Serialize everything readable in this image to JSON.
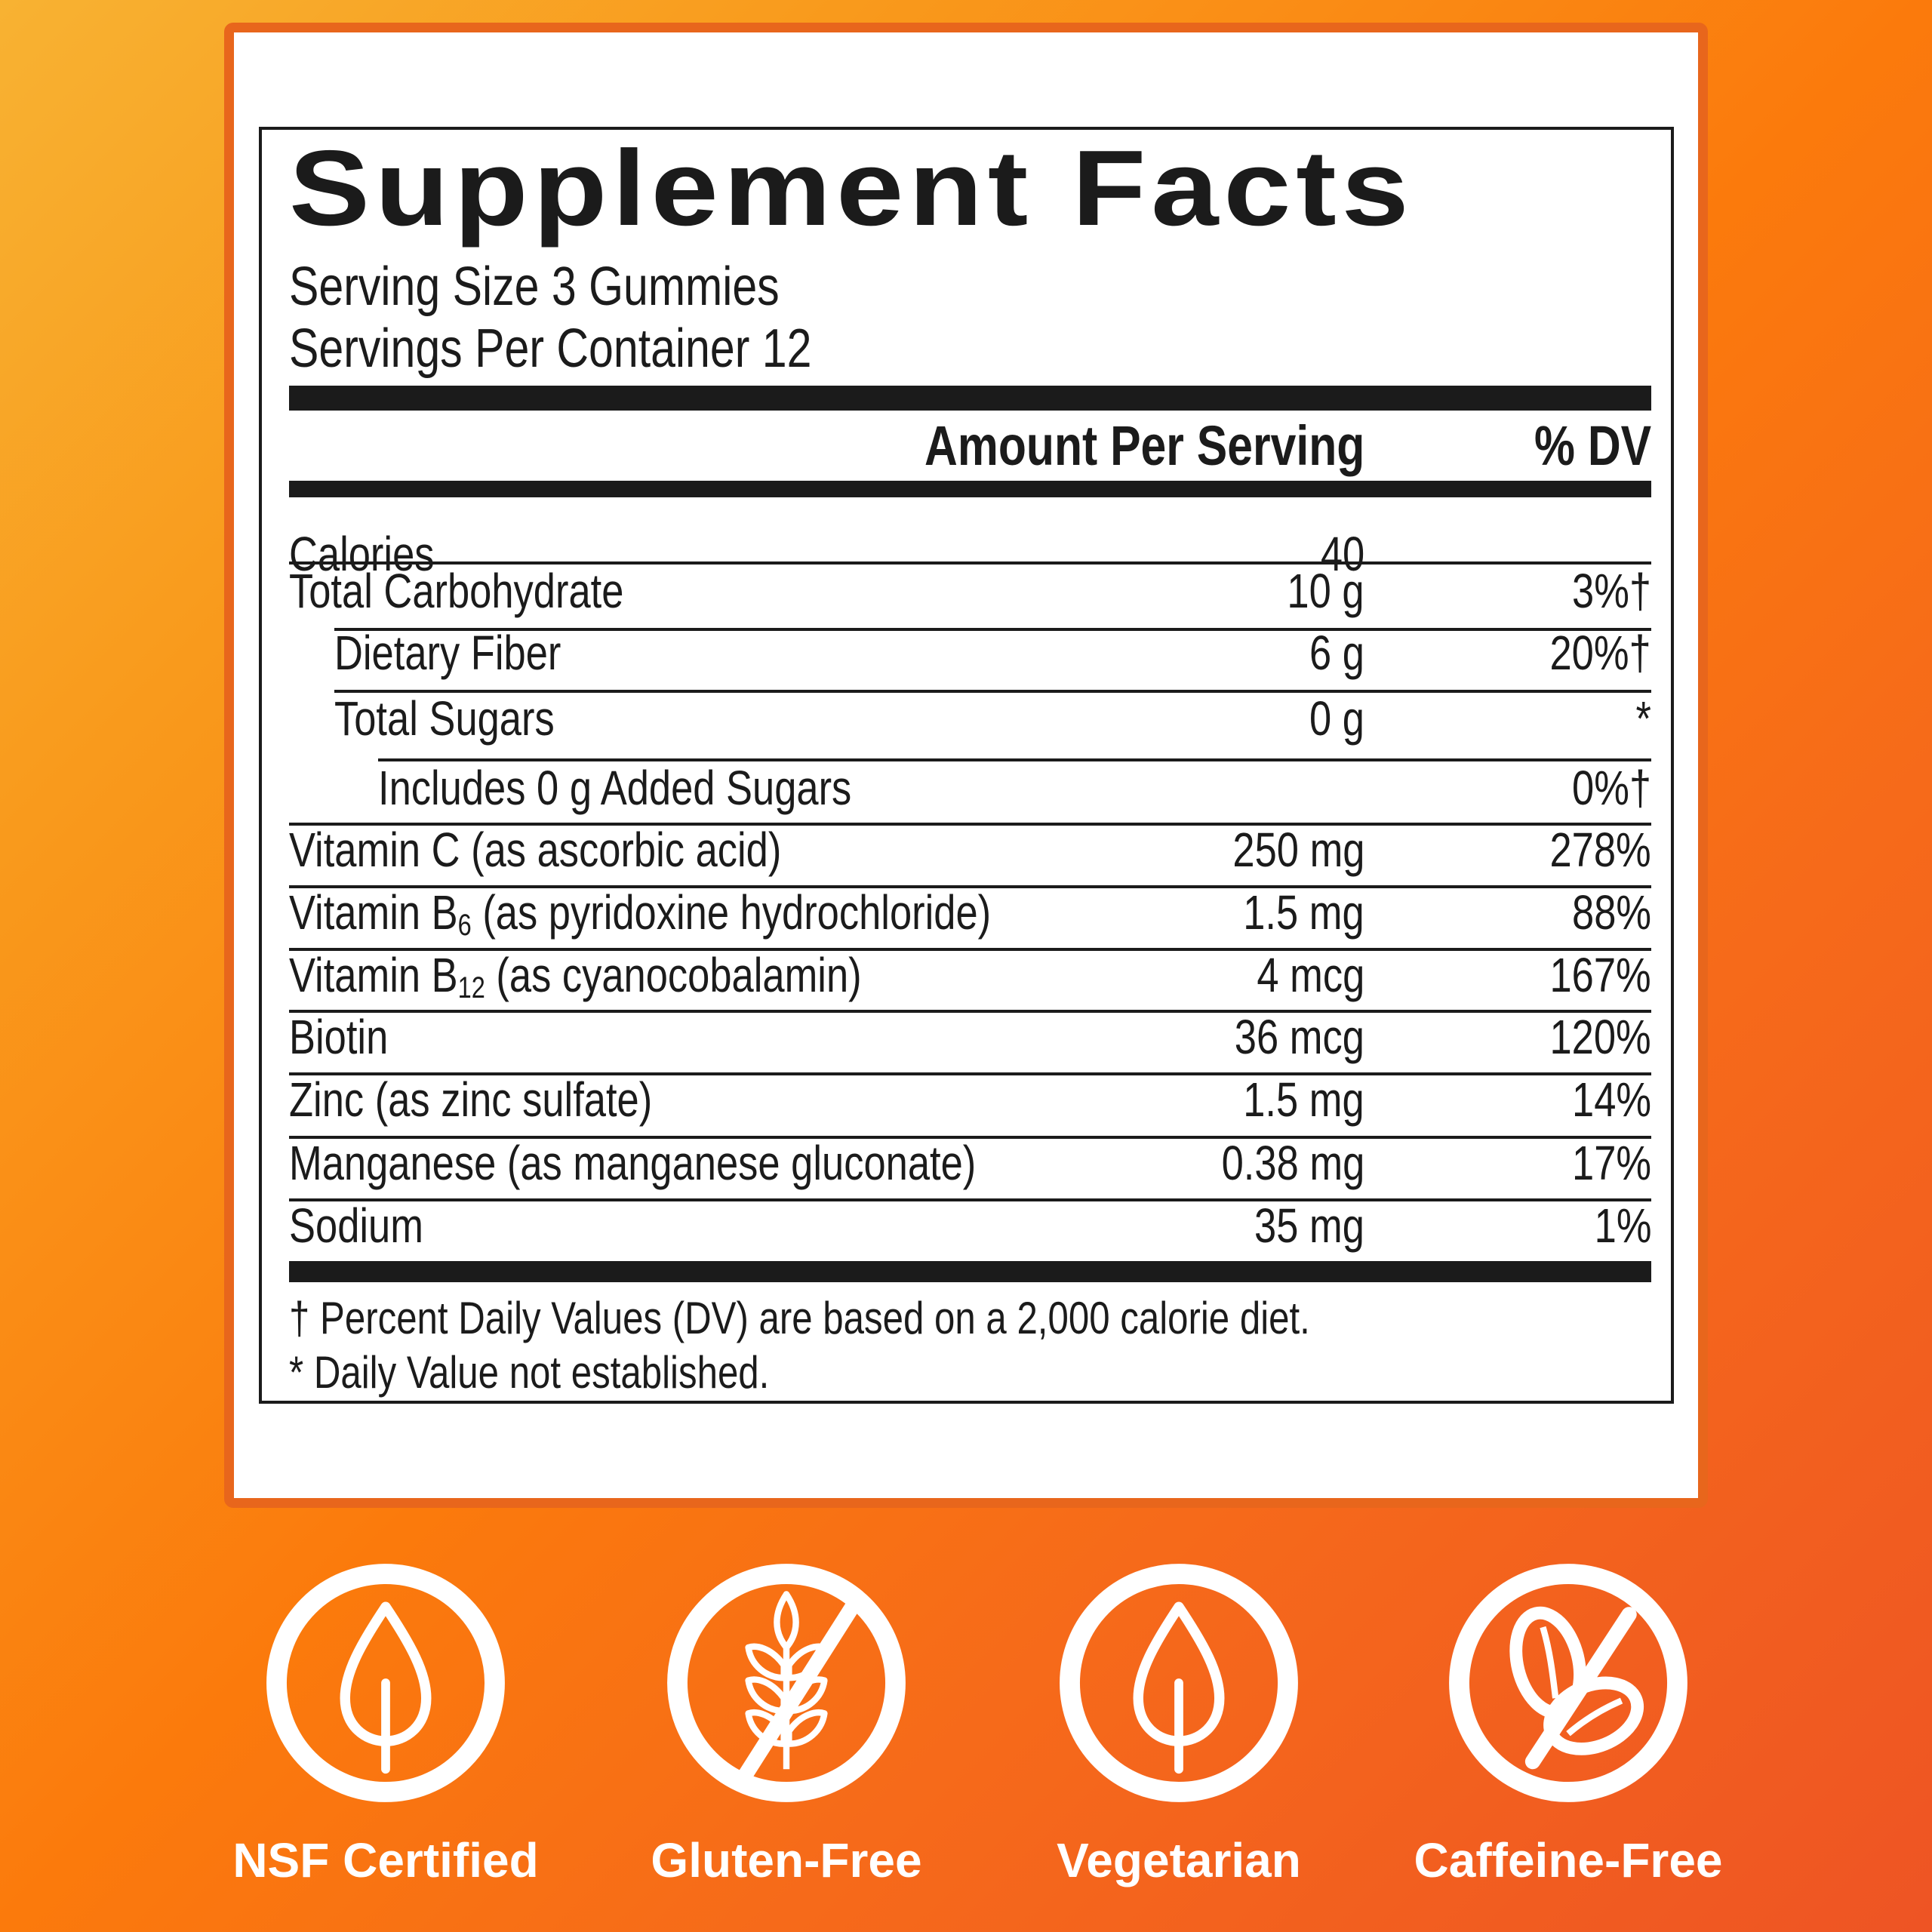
{
  "label": {
    "title": "Supplement Facts",
    "serving_size": "Serving Size 3 Gummies",
    "servings_per_container": "Servings Per Container 12",
    "header": {
      "amount": "Amount Per Serving",
      "dv": "% DV"
    },
    "rows": [
      {
        "name": "Calories",
        "sub": "",
        "name_rest": "",
        "amount": "40",
        "dv": "",
        "indent": 0
      },
      {
        "name": "Total Carbohydrate",
        "sub": "",
        "name_rest": "",
        "amount": "10 g",
        "dv": "3%†",
        "indent": 0
      },
      {
        "name": "Dietary Fiber",
        "sub": "",
        "name_rest": "",
        "amount": "6 g",
        "dv": "20%†",
        "indent": 1
      },
      {
        "name": "Total Sugars",
        "sub": "",
        "name_rest": "",
        "amount": "0 g",
        "dv": "*",
        "indent": 1
      },
      {
        "name": "Includes 0 g Added Sugars",
        "sub": "",
        "name_rest": "",
        "amount": "",
        "dv": "0%†",
        "indent": 2
      },
      {
        "name": "Vitamin C (as ascorbic acid)",
        "sub": "",
        "name_rest": "",
        "amount": "250 mg",
        "dv": "278%",
        "indent": 0
      },
      {
        "name": "Vitamin B",
        "sub": "6",
        "name_rest": " (as pyridoxine hydrochloride)",
        "amount": "1.5 mg",
        "dv": "88%",
        "indent": 0
      },
      {
        "name": "Vitamin B",
        "sub": "12",
        "name_rest": " (as cyanocobalamin)",
        "amount": "4 mcg",
        "dv": "167%",
        "indent": 0
      },
      {
        "name": "Biotin",
        "sub": "",
        "name_rest": "",
        "amount": "36 mcg",
        "dv": "120%",
        "indent": 0
      },
      {
        "name": "Zinc (as zinc sulfate)",
        "sub": "",
        "name_rest": "",
        "amount": "1.5 mg",
        "dv": "14%",
        "indent": 0
      },
      {
        "name": "Manganese (as manganese gluconate)",
        "sub": "",
        "name_rest": "",
        "amount": "0.38 mg",
        "dv": "17%",
        "indent": 0
      },
      {
        "name": "Sodium",
        "sub": "",
        "name_rest": "",
        "amount": "35 mg",
        "dv": "1%",
        "indent": 0
      }
    ],
    "footnotes": [
      "† Percent Daily Values (DV) are based on a 2,000 calorie diet.",
      "* Daily Value not established."
    ]
  },
  "badges": [
    {
      "label": "NSF Certified",
      "icon": "leaf-icon"
    },
    {
      "label": "Gluten-Free",
      "icon": "no-wheat-icon"
    },
    {
      "label": "Vegetarian",
      "icon": "leaf-icon"
    },
    {
      "label": "Caffeine-Free",
      "icon": "no-coffee-bean-icon"
    }
  ],
  "colors": {
    "background_start": "#f8b232",
    "background_end": "#ee5424",
    "card_border": "#e8661c",
    "text": "#1b1b1b",
    "badge": "#ffffff"
  }
}
